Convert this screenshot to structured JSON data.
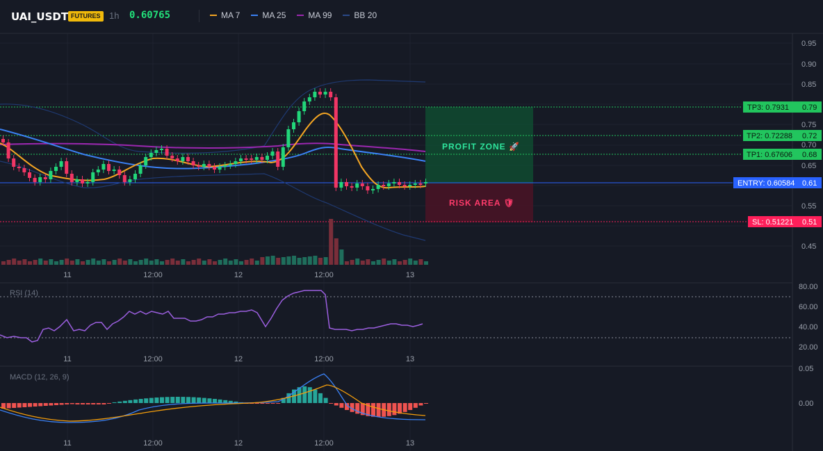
{
  "header": {
    "symbol": "UAI_USDT",
    "badge": "FUTURES",
    "interval": "1h",
    "last_price": "0.60765",
    "legend": [
      {
        "label": "MA 7",
        "color": "#f5a623"
      },
      {
        "label": "MA 25",
        "color": "#3b82f6"
      },
      {
        "label": "MA 99",
        "color": "#9c27b0"
      },
      {
        "label": "BB 20",
        "color": "#2a4a8a"
      }
    ]
  },
  "price_axis": {
    "ticks": [
      "0.95",
      "0.90",
      "0.85",
      "0.80",
      "0.75",
      "0.70",
      "0.65",
      "0.60",
      "0.55",
      "0.50",
      "0.45"
    ]
  },
  "time_axis": {
    "labels": [
      "11",
      "12:00",
      "12",
      "12:00",
      "13"
    ]
  },
  "levels": {
    "tp3": {
      "label": "TP3: 0.7931",
      "axis": "0.79",
      "color": "#22c55e"
    },
    "tp2": {
      "label": "TP2: 0.72288",
      "axis": "0.72",
      "color": "#22c55e"
    },
    "tp1": {
      "label": "TP1: 0.67606",
      "axis": "0.68",
      "color": "#22c55e"
    },
    "entry": {
      "label": "ENTRY: 0.60584",
      "axis": "0.61",
      "color": "#2962ff"
    },
    "sl": {
      "label": "SL: 0.51221",
      "axis": "0.51",
      "color": "#ff1f5a"
    }
  },
  "zones": {
    "profit": "PROFIT ZONE 🚀",
    "risk": "RISK AREA 🛡"
  },
  "rsi": {
    "title": "RSI (14)",
    "ticks": [
      "80.00",
      "60.00",
      "40.00",
      "20.00"
    ],
    "color": "#9c5fe0"
  },
  "macd": {
    "title": "MACD (12, 26, 9)",
    "ticks": [
      "0.05",
      "0.00"
    ]
  }
}
